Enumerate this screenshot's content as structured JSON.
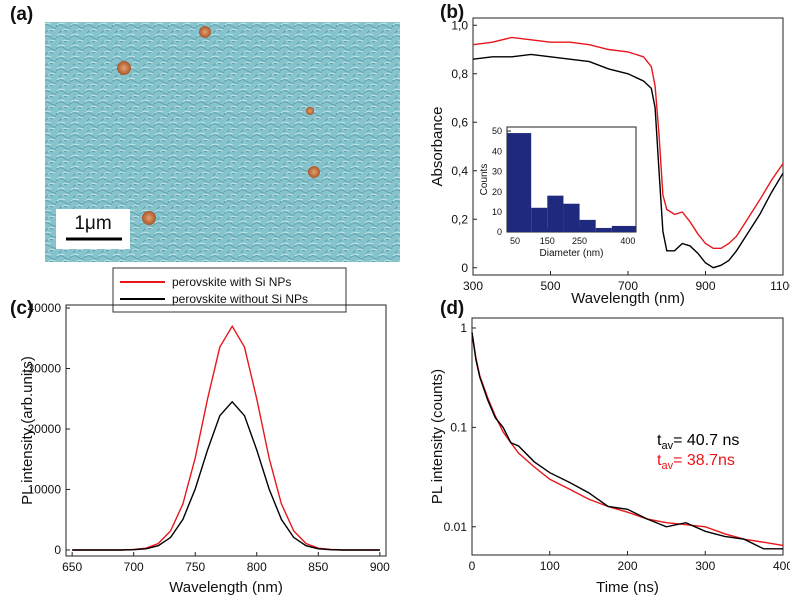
{
  "panel_a": {
    "label": "(a)",
    "scale_bar": "1μm"
  },
  "legend": [
    {
      "name": "perovskite with Si NPs",
      "color": "#e8161b"
    },
    {
      "name": "perovskite without Si NPs",
      "color": "#000000"
    }
  ],
  "chart_data": [
    {
      "type": "line",
      "title": "(b)",
      "xlabel": "Wavelength (nm)",
      "ylabel": "Absorbance",
      "xlim": [
        300,
        1100
      ],
      "ylim": [
        -0.03,
        1.03
      ],
      "xticks": [
        300,
        500,
        700,
        900,
        1100
      ],
      "yticks": [
        0,
        {
          "value": 0.2,
          "label": "0,2"
        },
        {
          "value": 0.4,
          "label": "0,4"
        },
        {
          "value": 0.6,
          "label": "0,6"
        },
        {
          "value": 0.8,
          "label": "0,8"
        },
        {
          "value": 1.0,
          "label": "1,0"
        }
      ],
      "x": [
        300,
        350,
        400,
        450,
        500,
        550,
        600,
        650,
        700,
        740,
        760,
        770,
        780,
        790,
        800,
        820,
        840,
        860,
        880,
        900,
        920,
        940,
        960,
        980,
        1000,
        1040,
        1070,
        1100
      ],
      "series": [
        {
          "color": "#e8161b",
          "values": [
            0.92,
            0.93,
            0.95,
            0.94,
            0.93,
            0.93,
            0.92,
            0.9,
            0.89,
            0.87,
            0.83,
            0.75,
            0.55,
            0.3,
            0.24,
            0.22,
            0.23,
            0.19,
            0.14,
            0.1,
            0.08,
            0.08,
            0.1,
            0.13,
            0.18,
            0.28,
            0.36,
            0.43
          ]
        },
        {
          "color": "#000000",
          "values": [
            0.86,
            0.87,
            0.87,
            0.88,
            0.87,
            0.86,
            0.85,
            0.82,
            0.8,
            0.77,
            0.74,
            0.66,
            0.4,
            0.15,
            0.07,
            0.07,
            0.1,
            0.09,
            0.06,
            0.02,
            0.0,
            0.01,
            0.03,
            0.07,
            0.12,
            0.22,
            0.31,
            0.39
          ]
        }
      ]
    },
    {
      "type": "histogram",
      "xlabel": "Diameter (nm)",
      "ylabel": "Counts",
      "color": "#1f2a7f",
      "xlim": [
        25,
        425
      ],
      "ylim": [
        0,
        52
      ],
      "xticks": [
        50,
        150,
        250,
        400
      ],
      "yticks": [
        0,
        10,
        20,
        30,
        40,
        50
      ],
      "bins": [
        25,
        100,
        150,
        200,
        250,
        300,
        350,
        425
      ],
      "values": [
        49,
        12,
        18,
        14,
        6,
        2,
        3
      ]
    },
    {
      "type": "line",
      "title": "(c)",
      "xlabel": "Wavelength (nm)",
      "ylabel": "PL intensity (arb.units)",
      "xlim": [
        645,
        905
      ],
      "ylim": [
        -1000,
        40500
      ],
      "xticks": [
        650,
        700,
        750,
        800,
        850,
        900
      ],
      "yticks": [
        0,
        10000,
        20000,
        30000,
        40000
      ],
      "x": [
        650,
        660,
        670,
        680,
        690,
        700,
        710,
        720,
        730,
        740,
        750,
        760,
        770,
        780,
        790,
        800,
        810,
        820,
        830,
        840,
        850,
        860,
        870,
        880,
        890,
        900
      ],
      "series": [
        {
          "color": "#e8161b",
          "values": [
            0,
            0,
            0,
            0,
            0,
            70,
            290,
            1060,
            3150,
            7620,
            15210,
            24940,
            33520,
            37000,
            33520,
            24940,
            15210,
            7620,
            3150,
            1060,
            290,
            70,
            0,
            0,
            0,
            0
          ]
        },
        {
          "color": "#000000",
          "values": [
            0,
            0,
            0,
            0,
            0,
            40,
            190,
            700,
            2080,
            5050,
            10070,
            16510,
            22200,
            24500,
            22200,
            16510,
            10070,
            5050,
            2080,
            700,
            190,
            40,
            0,
            0,
            0,
            0
          ]
        }
      ]
    },
    {
      "type": "line",
      "title": "(d)",
      "xlabel": "Time (ns)",
      "ylabel": "PL intensity (counts)",
      "log_y": true,
      "xlim": [
        0,
        400
      ],
      "ylim": [
        0.0052,
        1.26
      ],
      "xticks": [
        0,
        100,
        200,
        300,
        400
      ],
      "yticks": [
        0.01,
        0.1,
        1
      ],
      "x": [
        0,
        5,
        10,
        20,
        30,
        40,
        50,
        60,
        80,
        100,
        125,
        150,
        175,
        200,
        225,
        250,
        275,
        300,
        325,
        350,
        375,
        400
      ],
      "series": [
        {
          "color": "#e8161b",
          "values": [
            0.9,
            0.5,
            0.33,
            0.2,
            0.13,
            0.09,
            0.07,
            0.055,
            0.04,
            0.03,
            0.024,
            0.019,
            0.016,
            0.014,
            0.012,
            0.011,
            0.0105,
            0.01,
            0.0085,
            0.0075,
            0.007,
            0.0065
          ]
        },
        {
          "color": "#000000",
          "values": [
            0.9,
            0.48,
            0.32,
            0.19,
            0.125,
            0.1,
            0.07,
            0.065,
            0.045,
            0.035,
            0.028,
            0.022,
            0.016,
            0.015,
            0.012,
            0.01,
            0.011,
            0.009,
            0.008,
            0.0075,
            0.006,
            0.006
          ]
        }
      ],
      "annotations": [
        {
          "symbol": "t",
          "sub": "av",
          "text": "= 40.7 ns",
          "color": "#000000"
        },
        {
          "symbol": "t",
          "sub": "av",
          "text": "= 38.7ns",
          "color": "#e8161b"
        }
      ]
    }
  ]
}
